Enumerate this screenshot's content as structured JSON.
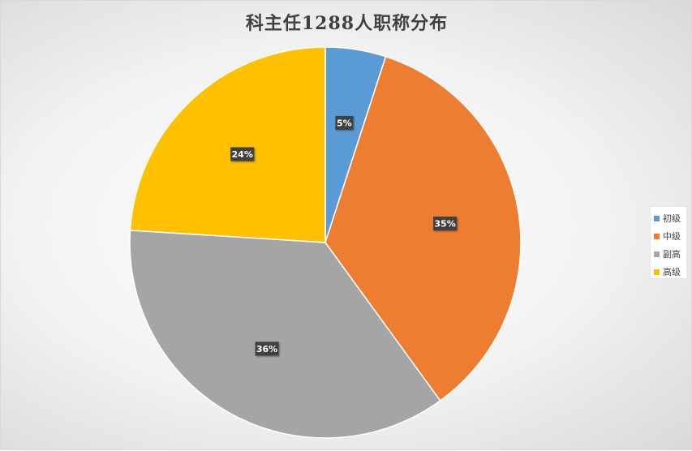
{
  "chart_data": {
    "type": "pie",
    "title": "科主任1288人职称分布",
    "categories": [
      "初级",
      "中级",
      "副高",
      "高级"
    ],
    "values": [
      5,
      35,
      36,
      24
    ],
    "unit": "%",
    "data_labels": [
      "5%",
      "35%",
      "36%",
      "24%"
    ],
    "colors": [
      "#5b9bd5",
      "#ed7d31",
      "#a5a5a5",
      "#ffc000"
    ],
    "start_angle_deg": 0,
    "direction": "clockwise",
    "legend_position": "right"
  }
}
